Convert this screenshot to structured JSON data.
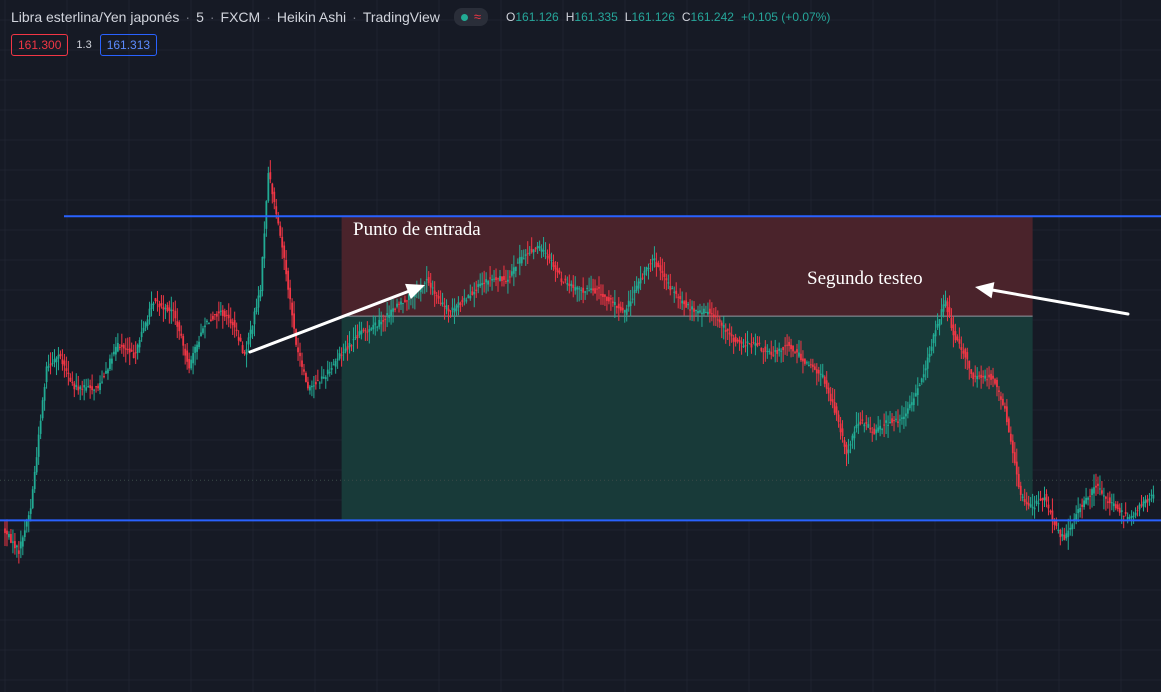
{
  "header": {
    "symbol": "Libra esterlina/Yen japonés",
    "interval": "5",
    "exchange": "FXCM",
    "chart_style": "Heikin Ashi",
    "source": "TradingView",
    "sep": "·",
    "ohlc": {
      "o_label": "O",
      "o": "161.126",
      "h_label": "H",
      "h": "161.335",
      "l_label": "L",
      "l": "161.126",
      "c_label": "C",
      "c": "161.242",
      "change": "+0.105 (+0.07%)"
    }
  },
  "trade_bar": {
    "sell_price": "161.300",
    "spread": "1.3",
    "buy_price": "161.313"
  },
  "colors": {
    "background": "#161a25",
    "grid": "#1f2330",
    "up": "#22ab94",
    "down": "#f23645",
    "level_line": "#2962ff",
    "stop_zone": "#4a232b",
    "target_zone": "#183a39"
  },
  "annotations": {
    "entry_text": "Punto de entrada",
    "retest_text": "Segundo testeo"
  },
  "chart_data": {
    "type": "candlestick",
    "style": "Heikin Ashi",
    "timeframe_minutes": 5,
    "y_range": [
      161.02,
      161.6
    ],
    "grid": true,
    "horizontal_levels": [
      {
        "name": "resistance",
        "price": 161.458
      },
      {
        "name": "support",
        "price": 161.178
      }
    ],
    "position_tool": {
      "entry": 161.366,
      "stop": 161.458,
      "target": 161.178,
      "start_bar": 170,
      "end_bar": 519
    },
    "close_path": [
      [
        0,
        161.17
      ],
      [
        8,
        161.15
      ],
      [
        14,
        161.19
      ],
      [
        22,
        161.32
      ],
      [
        28,
        161.33
      ],
      [
        36,
        161.3
      ],
      [
        48,
        161.3
      ],
      [
        58,
        161.34
      ],
      [
        66,
        161.33
      ],
      [
        76,
        161.38
      ],
      [
        86,
        161.37
      ],
      [
        94,
        161.32
      ],
      [
        102,
        161.36
      ],
      [
        110,
        161.37
      ],
      [
        116,
        161.36
      ],
      [
        122,
        161.33
      ],
      [
        130,
        161.39
      ],
      [
        134,
        161.5
      ],
      [
        142,
        161.42
      ],
      [
        148,
        161.34
      ],
      [
        154,
        161.3
      ],
      [
        162,
        161.31
      ],
      [
        170,
        161.33
      ],
      [
        180,
        161.35
      ],
      [
        190,
        161.36
      ],
      [
        202,
        161.38
      ],
      [
        210,
        161.39
      ],
      [
        214,
        161.4
      ],
      [
        220,
        161.38
      ],
      [
        226,
        161.37
      ],
      [
        232,
        161.38
      ],
      [
        238,
        161.39
      ],
      [
        246,
        161.4
      ],
      [
        254,
        161.4
      ],
      [
        262,
        161.42
      ],
      [
        270,
        161.43
      ],
      [
        276,
        161.42
      ],
      [
        282,
        161.4
      ],
      [
        290,
        161.39
      ],
      [
        300,
        161.39
      ],
      [
        306,
        161.38
      ],
      [
        314,
        161.37
      ],
      [
        322,
        161.4
      ],
      [
        328,
        161.42
      ],
      [
        334,
        161.4
      ],
      [
        342,
        161.38
      ],
      [
        350,
        161.37
      ],
      [
        358,
        161.37
      ],
      [
        366,
        161.35
      ],
      [
        372,
        161.34
      ],
      [
        380,
        161.34
      ],
      [
        388,
        161.33
      ],
      [
        396,
        161.34
      ],
      [
        402,
        161.33
      ],
      [
        408,
        161.32
      ],
      [
        414,
        161.31
      ],
      [
        420,
        161.28
      ],
      [
        426,
        161.24
      ],
      [
        432,
        161.27
      ],
      [
        440,
        161.26
      ],
      [
        448,
        161.27
      ],
      [
        454,
        161.27
      ],
      [
        460,
        161.29
      ],
      [
        466,
        161.32
      ],
      [
        472,
        161.36
      ],
      [
        476,
        161.38
      ],
      [
        480,
        161.35
      ],
      [
        486,
        161.33
      ],
      [
        490,
        161.31
      ],
      [
        494,
        161.31
      ],
      [
        500,
        161.31
      ],
      [
        506,
        161.28
      ],
      [
        510,
        161.24
      ],
      [
        514,
        161.2
      ],
      [
        520,
        161.19
      ],
      [
        526,
        161.2
      ],
      [
        532,
        161.17
      ],
      [
        536,
        161.16
      ],
      [
        544,
        161.19
      ],
      [
        552,
        161.21
      ],
      [
        556,
        161.2
      ],
      [
        562,
        161.19
      ],
      [
        568,
        161.18
      ],
      [
        574,
        161.19
      ],
      [
        580,
        161.2
      ]
    ]
  }
}
